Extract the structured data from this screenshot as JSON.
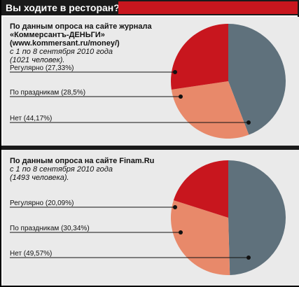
{
  "header": {
    "title": "Вы ходите в ресторан?",
    "accent_color": "#c8161e"
  },
  "colors": {
    "regularly": "#c8161e",
    "holidays": "#e8896a",
    "no": "#5f717c"
  },
  "chart_data": [
    {
      "type": "pie",
      "source_lines": [
        "По данным опроса на сайте журнала",
        "«Коммерсантъ-ДЕНЬГИ»",
        "(www.kommersant.ru/money/)",
        "с 1 по 8 сентября 2010 года",
        "(1021 человек)."
      ],
      "categories": [
        "Регулярно",
        "По праздникам",
        "Нет"
      ],
      "values": [
        27.33,
        28.5,
        44.17
      ],
      "labels": [
        "Регулярно (27,33%)",
        "По праздникам (28,5%)",
        "Нет (44,17%)"
      ]
    },
    {
      "type": "pie",
      "source_lines": [
        "По данным опроса на сайте Finam.Ru",
        "с 1 по 8 сентября 2010 года",
        "(1493 человека)."
      ],
      "categories": [
        "Регулярно",
        "По праздникам",
        "Нет"
      ],
      "values": [
        20.09,
        30.34,
        49.57
      ],
      "labels": [
        "Регулярно (20,09%)",
        "По праздникам (30,34%)",
        "Нет (49,57%)"
      ]
    }
  ]
}
